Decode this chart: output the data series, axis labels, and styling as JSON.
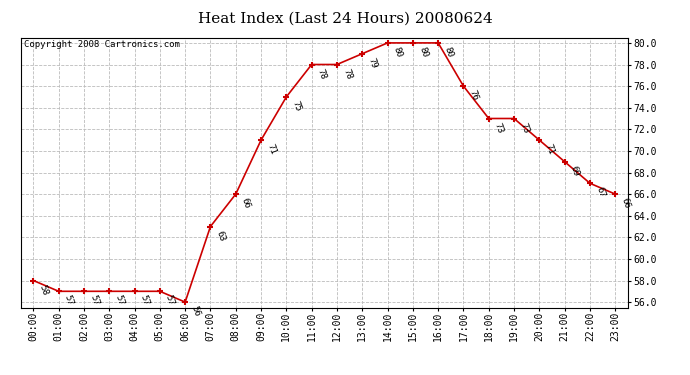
{
  "title": "Heat Index (Last 24 Hours) 20080624",
  "copyright": "Copyright 2008 Cartronics.com",
  "hours": [
    "00:00",
    "01:00",
    "02:00",
    "03:00",
    "04:00",
    "05:00",
    "06:00",
    "07:00",
    "08:00",
    "09:00",
    "10:00",
    "11:00",
    "12:00",
    "13:00",
    "14:00",
    "15:00",
    "16:00",
    "17:00",
    "18:00",
    "19:00",
    "20:00",
    "21:00",
    "22:00",
    "23:00"
  ],
  "values": [
    58,
    57,
    57,
    57,
    57,
    57,
    56,
    63,
    66,
    71,
    75,
    78,
    78,
    79,
    80,
    80,
    80,
    76,
    73,
    73,
    71,
    69,
    67,
    66
  ],
  "ylim_min": 55.5,
  "ylim_max": 80.5,
  "yticks": [
    56.0,
    58.0,
    60.0,
    62.0,
    64.0,
    66.0,
    68.0,
    70.0,
    72.0,
    74.0,
    76.0,
    78.0,
    80.0
  ],
  "line_color": "#cc0000",
  "marker_color": "#cc0000",
  "bg_color": "#ffffff",
  "grid_color": "#bbbbbb",
  "title_fontsize": 11,
  "copyright_fontsize": 6.5,
  "tick_fontsize": 7,
  "annotation_fontsize": 6.5,
  "annotation_rotation": -70
}
